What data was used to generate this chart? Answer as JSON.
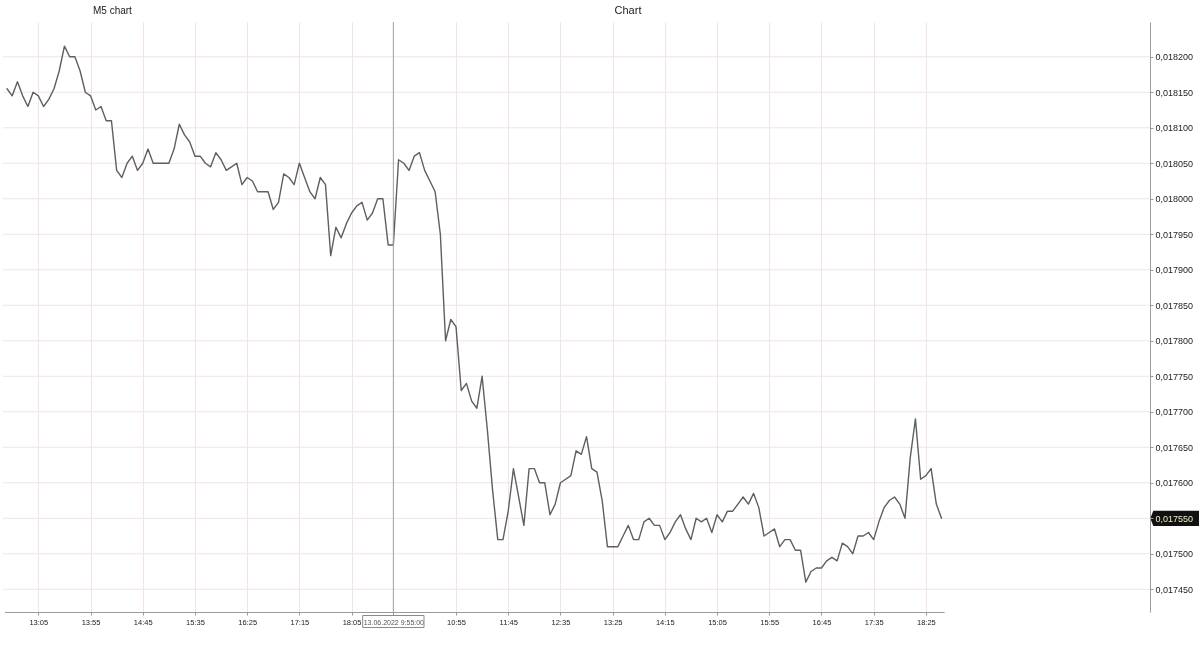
{
  "chart_data": {
    "type": "line",
    "title": "Chart",
    "categories": [
      null,
      null,
      null,
      null,
      null,
      null,
      "13:05",
      null,
      null,
      null,
      null,
      null,
      null,
      null,
      null,
      null,
      "13:55",
      null,
      null,
      null,
      null,
      null,
      null,
      null,
      null,
      null,
      "14:45",
      null,
      null,
      null,
      null,
      null,
      null,
      null,
      null,
      null,
      "15:35",
      null,
      null,
      null,
      null,
      null,
      null,
      null,
      null,
      null,
      "16:25",
      null,
      null,
      null,
      null,
      null,
      null,
      null,
      null,
      null,
      "17:15",
      null,
      null,
      null,
      null,
      null,
      null,
      null,
      null,
      null,
      "18:05",
      null,
      null,
      null,
      null,
      null,
      null,
      null,
      "13.06.2022 9:55:00",
      null,
      null,
      null,
      null,
      null,
      null,
      null,
      null,
      null,
      null,
      null,
      "10:55",
      null,
      null,
      null,
      null,
      null,
      null,
      null,
      null,
      null,
      "11:45",
      null,
      null,
      null,
      null,
      null,
      null,
      null,
      null,
      null,
      "12:35",
      null,
      null,
      null,
      null,
      null,
      null,
      null,
      null,
      null,
      "13:25",
      null,
      null,
      null,
      null,
      null,
      null,
      null,
      null,
      null,
      "14:15",
      null,
      null,
      null,
      null,
      null,
      null,
      null,
      null,
      null,
      "15:05",
      null,
      null,
      null,
      null,
      null,
      null,
      null,
      null,
      null,
      "15:55",
      null,
      null,
      null,
      null,
      null,
      null,
      null,
      null,
      null,
      "16:45",
      null,
      null,
      null,
      null,
      null,
      null,
      null,
      null,
      null,
      "17:35",
      null,
      null,
      null,
      null,
      null,
      null,
      null,
      null,
      null,
      "18:25",
      null,
      null,
      null
    ],
    "series": [
      {
        "color": "#5f5f5f",
        "values": [
          0.018155,
          0.018145,
          0.018165,
          0.018145,
          0.01813,
          0.01815,
          0.018145,
          0.01813,
          0.01814,
          0.018155,
          0.01818,
          0.018215,
          0.0182,
          0.0182,
          0.01818,
          0.01815,
          0.018145,
          0.018125,
          0.01813,
          0.01811,
          0.01811,
          0.01804,
          0.01803,
          0.01805,
          0.01806,
          0.01804,
          0.01805,
          0.01807,
          0.01805,
          0.01805,
          0.01805,
          0.01805,
          0.01807,
          0.018105,
          0.01809,
          0.01808,
          0.01806,
          0.01806,
          0.01805,
          0.018045,
          0.018065,
          0.018055,
          0.01804,
          0.018045,
          0.01805,
          0.01802,
          0.01803,
          0.018025,
          0.01801,
          0.01801,
          0.01801,
          0.017985,
          0.017995,
          0.018035,
          0.01803,
          0.01802,
          0.01805,
          0.01803,
          0.01801,
          0.018,
          0.01803,
          0.01802,
          0.01792,
          0.01796,
          0.017945,
          0.017965,
          0.01798,
          0.01799,
          0.017995,
          0.01797,
          0.01798,
          0.018,
          0.018,
          0.017935,
          0.017935,
          0.018055,
          0.01805,
          0.01804,
          0.01806,
          0.018065,
          0.01804,
          0.018025,
          0.01801,
          0.01795,
          0.0178,
          0.01783,
          0.01782,
          0.01773,
          0.01774,
          0.017715,
          0.017705,
          0.01775,
          0.017675,
          0.01759,
          0.01752,
          0.01752,
          0.01756,
          0.01762,
          0.01758,
          0.01754,
          0.01762,
          0.01762,
          0.0176,
          0.0176,
          0.017555,
          0.01757,
          0.0176,
          0.017605,
          0.01761,
          0.017645,
          0.01764,
          0.017665,
          0.01762,
          0.017615,
          0.017575,
          0.01751,
          0.01751,
          0.01751,
          0.017525,
          0.01754,
          0.01752,
          0.01752,
          0.017545,
          0.01755,
          0.01754,
          0.01754,
          0.01752,
          0.01753,
          0.017545,
          0.017555,
          0.017535,
          0.01752,
          0.01755,
          0.017545,
          0.01755,
          0.01753,
          0.017555,
          0.017545,
          0.01756,
          0.01756,
          0.01757,
          0.01758,
          0.01757,
          0.017585,
          0.017565,
          0.017525,
          0.01753,
          0.017535,
          0.01751,
          0.01752,
          0.01752,
          0.017505,
          0.017505,
          0.01746,
          0.017475,
          0.01748,
          0.01748,
          0.01749,
          0.017495,
          0.01749,
          0.017515,
          0.01751,
          0.0175,
          0.017525,
          0.017525,
          0.01753,
          0.01752,
          0.017545,
          0.017565,
          0.017575,
          0.01758,
          0.01757,
          0.01755,
          0.017635,
          0.01769,
          0.017605,
          0.01761,
          0.01762,
          0.01757,
          0.01755
        ]
      }
    ],
    "ylim": [
      0.017418,
      0.018249
    ],
    "yticks": [
      {
        "value": 0.0182,
        "label": "0,018200"
      },
      {
        "value": 0.01815,
        "label": "0,018150"
      },
      {
        "value": 0.0181,
        "label": "0,018100"
      },
      {
        "value": 0.01805,
        "label": "0,018050"
      },
      {
        "value": 0.018,
        "label": "0,018000"
      },
      {
        "value": 0.01795,
        "label": "0,017950"
      },
      {
        "value": 0.0179,
        "label": "0,017900"
      },
      {
        "value": 0.01785,
        "label": "0,017850"
      },
      {
        "value": 0.0178,
        "label": "0,017800"
      },
      {
        "value": 0.01775,
        "label": "0,017750"
      },
      {
        "value": 0.0177,
        "label": "0,017700"
      },
      {
        "value": 0.01765,
        "label": "0,017650"
      },
      {
        "value": 0.0176,
        "label": "0,017600"
      },
      {
        "value": 0.01755,
        "label": "0,017550"
      },
      {
        "value": 0.0175,
        "label": "0,017500"
      },
      {
        "value": 0.01745,
        "label": "0,017450"
      }
    ],
    "grid": true,
    "ref_lines": [
      {
        "axis": "x",
        "value": "13.06.2022 9:55:00",
        "color": "#a0a0a0"
      }
    ],
    "annotations": [
      "M5 chart"
    ]
  }
}
